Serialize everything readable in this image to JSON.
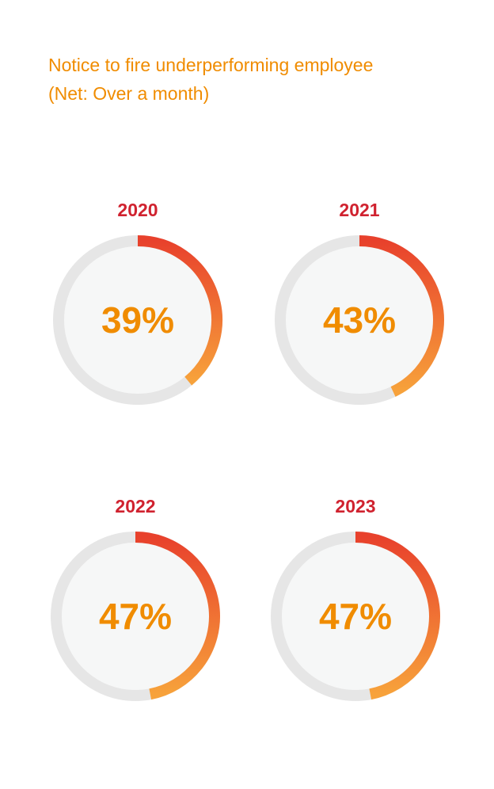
{
  "title": {
    "line1": "Notice to fire underperforming employee",
    "line2": "(Net: Over a month)"
  },
  "colors": {
    "title": "#f08c00",
    "year": "#d0222f",
    "value": "#f08c00",
    "track": "#e6e6e6",
    "inner": "#f6f7f7",
    "arc_start": "#e8412c",
    "arc_end": "#f7a23b"
  },
  "chart_data": {
    "type": "pie",
    "title": "Notice to fire underperforming employee",
    "subtitle": "(Net: Over a month)",
    "categories": [
      "2020",
      "2021",
      "2022",
      "2023"
    ],
    "values": [
      39,
      43,
      47,
      47
    ],
    "labels": [
      "39%",
      "43%",
      "47%",
      "47%"
    ],
    "unit": "%"
  }
}
